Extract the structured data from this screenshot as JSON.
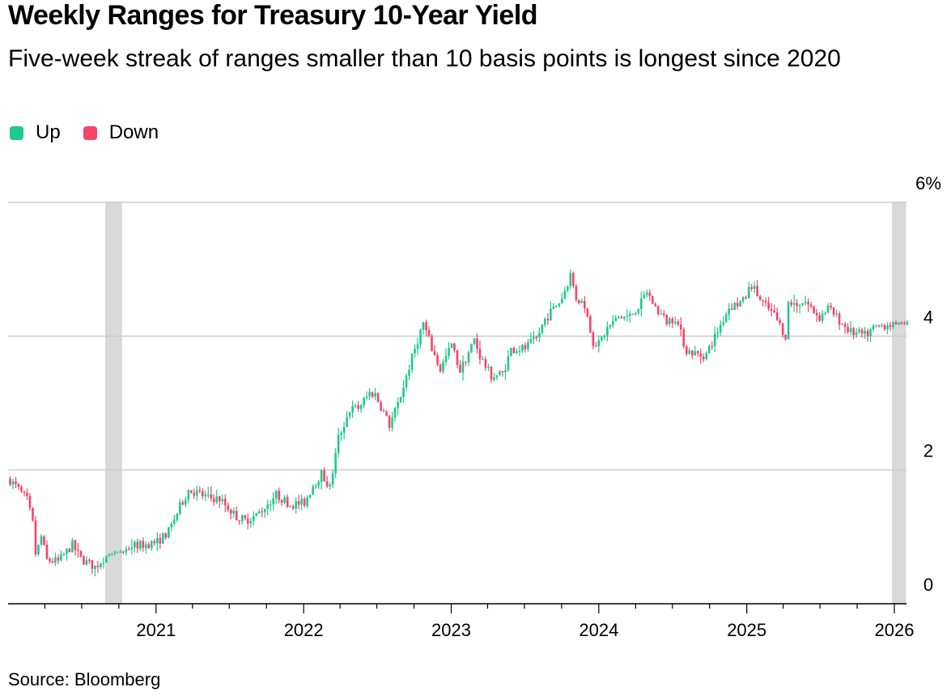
{
  "colors": {
    "up": "#1ec98d",
    "down": "#f6446a",
    "shade": "#d9d9d9",
    "grid": "#cccccc",
    "axis": "#000000"
  },
  "footer": {
    "source": "Source: Bloomberg"
  },
  "chart_data": {
    "type": "candlestick",
    "title": "Weekly Ranges for Treasury 10-Year Yield",
    "subtitle": "Five-week streak of ranges smaller than 10 basis points is longest since 2020",
    "legend": [
      {
        "name": "Up",
        "color": "#1ec98d"
      },
      {
        "name": "Down",
        "color": "#f6446a"
      }
    ],
    "y_axis": {
      "min": 0,
      "max": 6,
      "ticks": [
        {
          "value": 0,
          "label": "0"
        },
        {
          "value": 2,
          "label": "2"
        },
        {
          "value": 4,
          "label": "4"
        },
        {
          "value": 6,
          "label": "6%"
        }
      ],
      "position": "right",
      "grid": true
    },
    "x_axis": {
      "start": "2020-01-01",
      "end": "2026-01-31",
      "ticks": [
        {
          "date": "2021-01-01",
          "label": "2021"
        },
        {
          "date": "2022-01-01",
          "label": "2022"
        },
        {
          "date": "2023-01-01",
          "label": "2023"
        },
        {
          "date": "2024-01-01",
          "label": "2024"
        },
        {
          "date": "2025-01-01",
          "label": "2025"
        },
        {
          "date": "2026-01-01",
          "label": "2026"
        }
      ]
    },
    "shaded_periods": [
      {
        "start": "2020-08-28",
        "end": "2020-10-09",
        "label": "Five-week streak of ranges smaller than 10 basis points (2020)"
      },
      {
        "start": "2025-12-26",
        "end": "2026-01-30",
        "label": "Five-week streak of ranges smaller than 10 basis points (current)"
      }
    ],
    "anchors": [
      [
        "2020-01-03",
        1.85
      ],
      [
        "2020-01-24",
        1.7
      ],
      [
        "2020-02-14",
        1.55
      ],
      [
        "2020-02-28",
        1.2
      ],
      [
        "2020-03-06",
        0.75
      ],
      [
        "2020-03-13",
        0.85
      ],
      [
        "2020-03-20",
        1.0
      ],
      [
        "2020-04-03",
        0.65
      ],
      [
        "2020-05-01",
        0.63
      ],
      [
        "2020-06-05",
        0.88
      ],
      [
        "2020-06-26",
        0.67
      ],
      [
        "2020-07-31",
        0.55
      ],
      [
        "2020-08-28",
        0.72
      ],
      [
        "2020-10-09",
        0.78
      ],
      [
        "2020-10-30",
        0.87
      ],
      [
        "2020-11-27",
        0.88
      ],
      [
        "2020-12-31",
        0.92
      ],
      [
        "2021-01-29",
        1.08
      ],
      [
        "2021-02-26",
        1.45
      ],
      [
        "2021-03-19",
        1.7
      ],
      [
        "2021-04-09",
        1.66
      ],
      [
        "2021-05-07",
        1.58
      ],
      [
        "2021-06-04",
        1.57
      ],
      [
        "2021-07-16",
        1.3
      ],
      [
        "2021-08-06",
        1.25
      ],
      [
        "2021-09-03",
        1.32
      ],
      [
        "2021-10-22",
        1.63
      ],
      [
        "2021-11-26",
        1.48
      ],
      [
        "2021-12-31",
        1.51
      ],
      [
        "2022-01-21",
        1.77
      ],
      [
        "2022-02-11",
        1.94
      ],
      [
        "2022-03-04",
        1.73
      ],
      [
        "2022-03-25",
        2.48
      ],
      [
        "2022-04-22",
        2.9
      ],
      [
        "2022-05-13",
        2.93
      ],
      [
        "2022-06-10",
        3.15
      ],
      [
        "2022-06-24",
        3.13
      ],
      [
        "2022-07-29",
        2.67
      ],
      [
        "2022-08-19",
        2.98
      ],
      [
        "2022-09-23",
        3.68
      ],
      [
        "2022-10-21",
        4.2
      ],
      [
        "2022-11-11",
        3.81
      ],
      [
        "2022-12-02",
        3.5
      ],
      [
        "2022-12-30",
        3.87
      ],
      [
        "2023-01-20",
        3.48
      ],
      [
        "2023-02-24",
        3.95
      ],
      [
        "2023-03-10",
        3.7
      ],
      [
        "2023-04-07",
        3.4
      ],
      [
        "2023-05-05",
        3.44
      ],
      [
        "2023-05-26",
        3.8
      ],
      [
        "2023-06-30",
        3.82
      ],
      [
        "2023-07-28",
        3.96
      ],
      [
        "2023-08-18",
        4.25
      ],
      [
        "2023-09-29",
        4.57
      ],
      [
        "2023-10-20",
        4.92
      ],
      [
        "2023-11-03",
        4.57
      ],
      [
        "2023-11-24",
        4.47
      ],
      [
        "2023-12-15",
        3.92
      ],
      [
        "2023-12-29",
        3.88
      ],
      [
        "2024-01-19",
        4.12
      ],
      [
        "2024-02-16",
        4.28
      ],
      [
        "2024-03-15",
        4.3
      ],
      [
        "2024-04-12",
        4.5
      ],
      [
        "2024-04-26",
        4.67
      ],
      [
        "2024-05-17",
        4.42
      ],
      [
        "2024-06-14",
        4.22
      ],
      [
        "2024-07-05",
        4.28
      ],
      [
        "2024-08-02",
        3.79
      ],
      [
        "2024-09-06",
        3.71
      ],
      [
        "2024-09-20",
        3.73
      ],
      [
        "2024-10-18",
        4.08
      ],
      [
        "2024-11-15",
        4.43
      ],
      [
        "2024-12-20",
        4.52
      ],
      [
        "2025-01-10",
        4.77
      ],
      [
        "2025-01-31",
        4.54
      ],
      [
        "2025-03-07",
        4.31
      ],
      [
        "2025-04-04",
        4.01
      ],
      [
        "2025-04-11",
        4.48
      ],
      [
        "2025-05-23",
        4.51
      ],
      [
        "2025-06-27",
        4.28
      ],
      [
        "2025-07-18",
        4.42
      ],
      [
        "2025-08-08",
        4.28
      ],
      [
        "2025-09-12",
        4.06
      ],
      [
        "2025-10-17",
        4.01
      ],
      [
        "2025-11-14",
        4.14
      ],
      [
        "2025-12-12",
        4.18
      ],
      [
        "2026-01-30",
        4.2
      ]
    ]
  }
}
